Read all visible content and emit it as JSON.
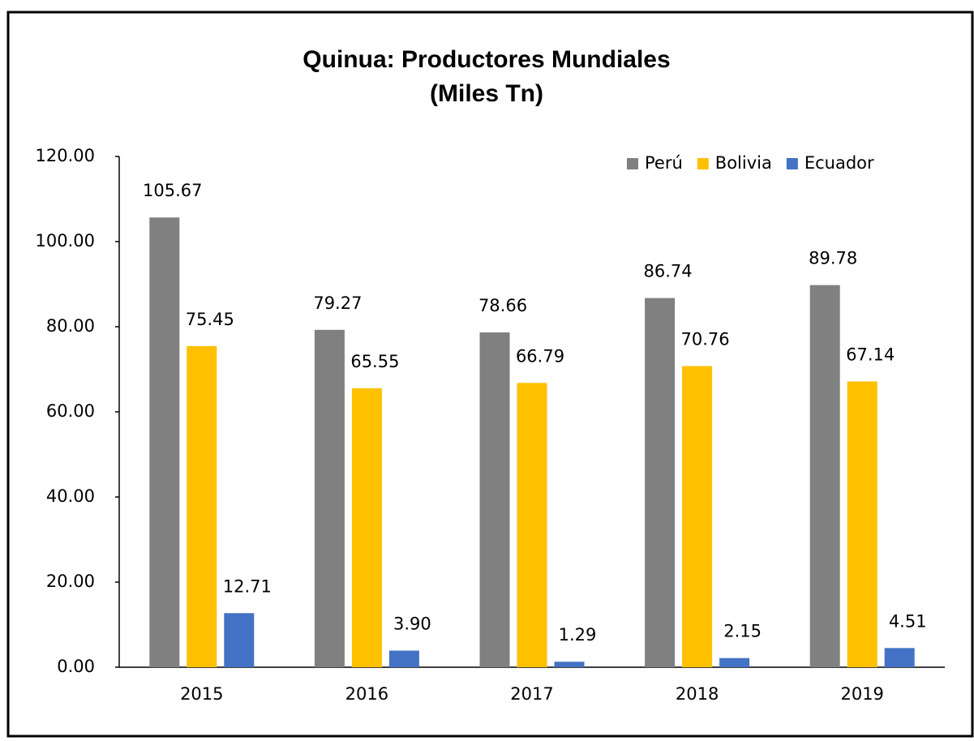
{
  "chart_data": {
    "type": "bar",
    "title": "Quinua: Productores Mundiales",
    "subtitle": "(Miles Tn)",
    "categories": [
      "2015",
      "2016",
      "2017",
      "2018",
      "2019"
    ],
    "series": [
      {
        "name": "Perú",
        "color": "#808080",
        "values": [
          105.67,
          79.27,
          78.66,
          86.74,
          89.78
        ],
        "value_labels": [
          "105.67",
          "79.27",
          "78.66",
          "86.74",
          "89.78"
        ]
      },
      {
        "name": "Bolivia",
        "color": "#ffc000",
        "values": [
          75.45,
          65.55,
          66.79,
          70.76,
          67.14
        ],
        "value_labels": [
          "75.45",
          "65.55",
          "66.79",
          "70.76",
          "67.14"
        ]
      },
      {
        "name": "Ecuador",
        "color": "#4472c4",
        "values": [
          12.71,
          3.9,
          1.29,
          2.15,
          4.51
        ],
        "value_labels": [
          "12.71",
          "3.90",
          "1.29",
          "2.15",
          "4.51"
        ]
      }
    ],
    "ylim": [
      0,
      120
    ],
    "yticks": [
      {
        "value": 0,
        "label": "0.00"
      },
      {
        "value": 20,
        "label": "20.00"
      },
      {
        "value": 40,
        "label": "40.00"
      },
      {
        "value": 60,
        "label": "60.00"
      },
      {
        "value": 80,
        "label": "80.00"
      },
      {
        "value": 100,
        "label": "100.00"
      },
      {
        "value": 120,
        "label": "120.00"
      }
    ],
    "legend": "top-right"
  }
}
